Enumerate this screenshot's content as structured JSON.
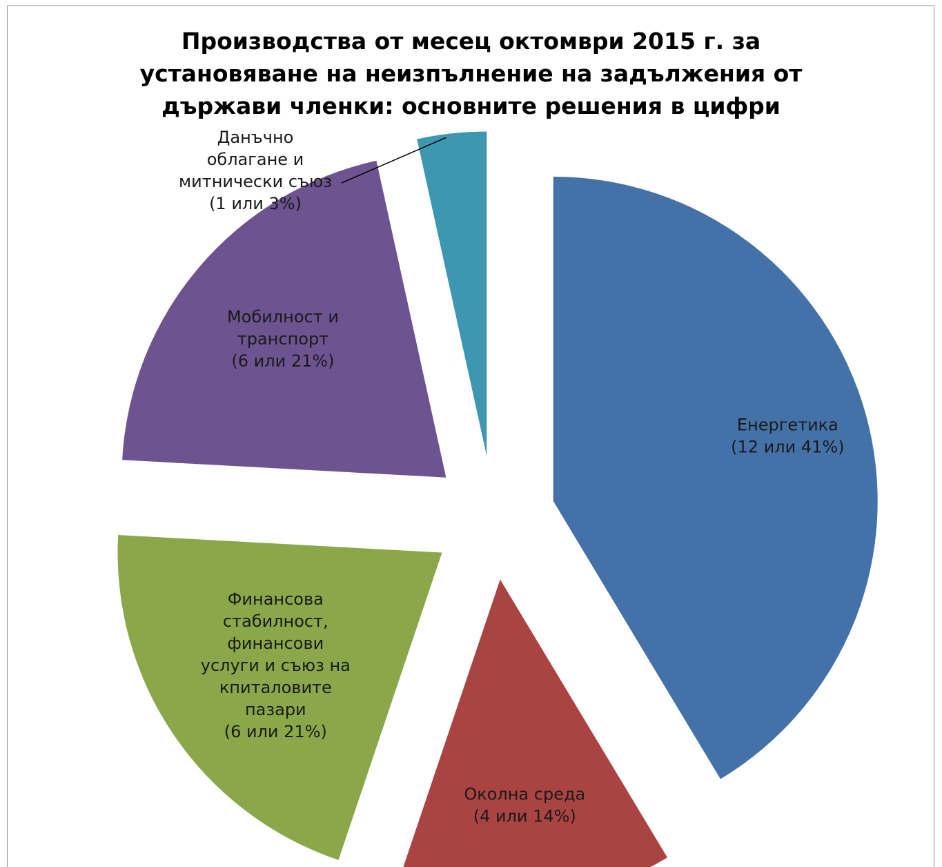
{
  "title_lines": [
    "Производства от месец октомври 2015 г. за",
    "установяване на неизпълнение на задължения от",
    "държави членки: основните решения в цифри"
  ],
  "chart_data": {
    "type": "pie",
    "exploded": true,
    "grid": false,
    "legend": "none",
    "title": "Производства от месец октомври 2015 г. за установяване на неизпълнение на задължения от държави членки: основните решения в цифри",
    "slices": [
      {
        "name": "Енергетика",
        "value": 12,
        "percent": 41,
        "color": "#4472a8",
        "label_lines": [
          "Енергетика",
          "(12 или 41%)"
        ]
      },
      {
        "name": "Околна среда",
        "value": 4,
        "percent": 14,
        "color": "#a94442",
        "label_lines": [
          "Околна среда",
          "(4 или 14%)"
        ]
      },
      {
        "name": "Финансова стабилност, финансови услуги и съюз на кпиталовите пазари",
        "value": 6,
        "percent": 21,
        "color": "#8aa84a",
        "label_lines": [
          "Финансова",
          "стабилност,",
          "финансови",
          "услуги и съюз на",
          "кпиталовите",
          "пазари",
          "(6 или 21%)"
        ]
      },
      {
        "name": "Мобилност и транспорт",
        "value": 6,
        "percent": 21,
        "color": "#6d5491",
        "label_lines": [
          "Мобилност и",
          "транспорт",
          "(6 или 21%)"
        ]
      },
      {
        "name": "Данъчно облагане и митнически съюз",
        "value": 1,
        "percent": 3,
        "color": "#3d97b1",
        "label_lines": [
          "Данъчно",
          "облагане и",
          "митнически съюз",
          "(1 или 3%)"
        ]
      }
    ]
  }
}
